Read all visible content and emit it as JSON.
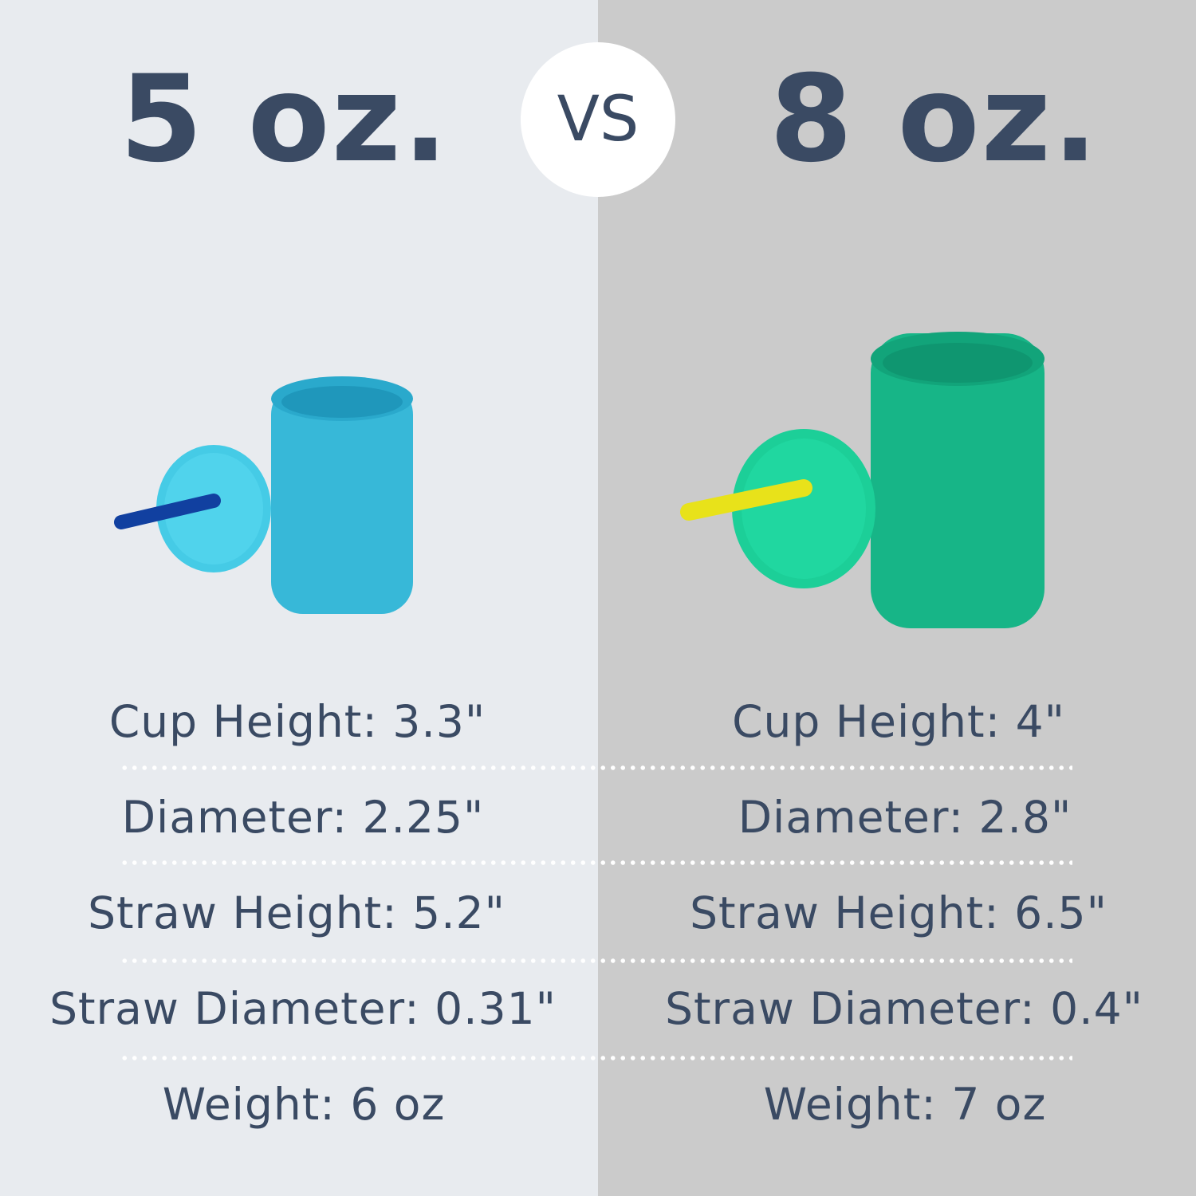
{
  "left": {
    "title": "5 oz.",
    "cup_color": "#3ec4e0",
    "straw_color": "#1140a0",
    "specs": [
      "Cup Height: 3.3\"",
      "Diameter: 2.25\"",
      "Straw Height: 5.2\"",
      "Straw Diameter: 0.31\"",
      "Weight: 6 oz"
    ]
  },
  "vs_label": "VS",
  "right": {
    "title": "8 oz.",
    "cup_color": "#16b98a",
    "straw_color": "#e8e21a",
    "specs": [
      "Cup Height: 4\"",
      "Diameter: 2.8\"",
      "Straw Height: 6.5\"",
      "Straw Diameter: 0.4\"",
      "Weight: 7 oz"
    ]
  },
  "colors": {
    "text": "#3a4a63",
    "left_bg": "#e8ebef",
    "right_bg": "#cbcbcb"
  }
}
